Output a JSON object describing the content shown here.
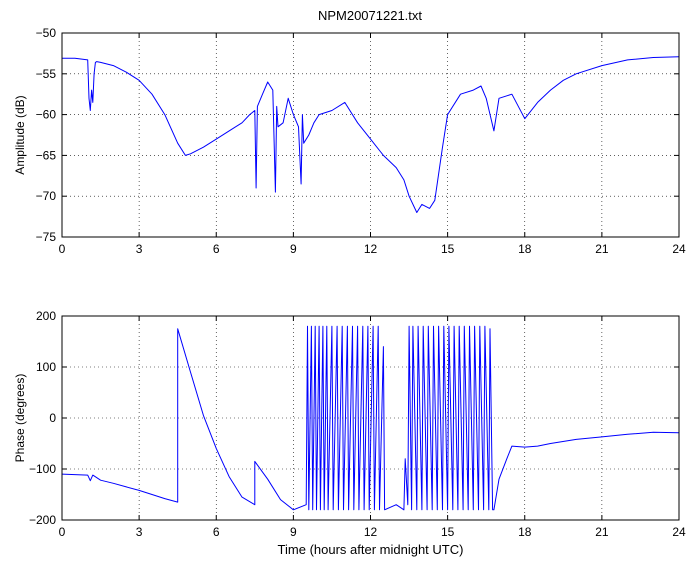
{
  "figure_title": "NPM20071221.txt",
  "chart_data": [
    {
      "type": "line",
      "title": "NPM20071221.txt",
      "xlabel": "",
      "ylabel": "Amplitude (dB)",
      "xlim": [
        0,
        24
      ],
      "ylim": [
        -75,
        -50
      ],
      "xticks": [
        0,
        3,
        6,
        9,
        12,
        15,
        18,
        21,
        24
      ],
      "yticks": [
        -75,
        -70,
        -65,
        -60,
        -55,
        -50
      ],
      "grid": true,
      "color": "#0000ff",
      "x": [
        0,
        0.5,
        1.0,
        1.05,
        1.1,
        1.15,
        1.2,
        1.25,
        1.3,
        1.35,
        1.5,
        2.0,
        2.5,
        3.0,
        3.5,
        4.0,
        4.5,
        4.8,
        5.0,
        5.5,
        6.0,
        6.5,
        7.0,
        7.3,
        7.5,
        7.55,
        7.6,
        7.8,
        8.0,
        8.2,
        8.3,
        8.35,
        8.4,
        8.6,
        8.8,
        9.0,
        9.2,
        9.3,
        9.35,
        9.4,
        9.6,
        9.8,
        10.0,
        10.5,
        11.0,
        11.5,
        12.0,
        12.5,
        13.0,
        13.3,
        13.5,
        13.8,
        14.0,
        14.3,
        14.5,
        14.8,
        15.0,
        15.5,
        16.0,
        16.3,
        16.5,
        16.8,
        17.0,
        17.5,
        18.0,
        18.5,
        19.0,
        19.5,
        20.0,
        21.0,
        22.0,
        23.0,
        24.0
      ],
      "y": [
        -53.1,
        -53.1,
        -53.3,
        -58.0,
        -59.5,
        -57.0,
        -58.5,
        -55.0,
        -53.6,
        -53.5,
        -53.6,
        -54.0,
        -54.8,
        -55.8,
        -57.5,
        -60.0,
        -63.5,
        -65.0,
        -64.8,
        -64.0,
        -63.0,
        -62.0,
        -61.0,
        -60.0,
        -59.5,
        -69.0,
        -59.0,
        -57.5,
        -56.0,
        -57.0,
        -69.5,
        -59.0,
        -61.5,
        -61.0,
        -58.0,
        -60.0,
        -61.5,
        -68.5,
        -60.0,
        -63.5,
        -62.5,
        -61.0,
        -60.0,
        -59.5,
        -58.5,
        -61.0,
        -63.0,
        -65.0,
        -66.5,
        -68.0,
        -70.0,
        -72.0,
        -71.0,
        -71.5,
        -70.5,
        -64.0,
        -60.0,
        -57.5,
        -57.0,
        -56.5,
        -58.0,
        -62.0,
        -58.0,
        -57.5,
        -60.5,
        -58.5,
        -57.0,
        -55.8,
        -55.0,
        -54.0,
        -53.3,
        -53.0,
        -52.9
      ]
    },
    {
      "type": "line",
      "title": "",
      "xlabel": "Time (hours after midnight UTC)",
      "ylabel": "Phase (degrees)",
      "xlim": [
        0,
        24
      ],
      "ylim": [
        -200,
        200
      ],
      "xticks": [
        0,
        3,
        6,
        9,
        12,
        15,
        18,
        21,
        24
      ],
      "yticks": [
        -200,
        -100,
        0,
        100,
        200
      ],
      "grid": true,
      "color": "#0000ff",
      "x": [
        0,
        1.0,
        1.1,
        1.2,
        1.5,
        2.0,
        2.5,
        3.0,
        3.5,
        4.0,
        4.5,
        4.5,
        5.0,
        5.5,
        6.0,
        6.5,
        7.0,
        7.5,
        7.5,
        8.0,
        8.5,
        9.0,
        9.5,
        9.55,
        9.6,
        9.7,
        9.75,
        9.85,
        9.9,
        10.0,
        10.05,
        10.15,
        10.2,
        10.3,
        10.35,
        10.5,
        10.55,
        10.7,
        10.75,
        10.9,
        10.95,
        11.1,
        11.15,
        11.3,
        11.35,
        11.5,
        11.55,
        11.7,
        11.75,
        11.9,
        11.95,
        12.1,
        12.15,
        12.3,
        12.35,
        12.5,
        12.55,
        13.0,
        13.3,
        13.35,
        13.45,
        13.5,
        13.6,
        13.65,
        13.8,
        13.85,
        14.0,
        14.05,
        14.2,
        14.25,
        14.4,
        14.45,
        14.6,
        14.65,
        14.8,
        14.85,
        15.0,
        15.05,
        15.2,
        15.25,
        15.4,
        15.45,
        15.6,
        15.65,
        15.8,
        15.85,
        16.0,
        16.05,
        16.2,
        16.25,
        16.4,
        16.45,
        16.6,
        16.65,
        16.75,
        16.8,
        17.0,
        17.3,
        17.5,
        18.0,
        18.5,
        19.0,
        20.0,
        21.0,
        22.0,
        23.0,
        24.0
      ],
      "y": [
        -110,
        -112,
        -123,
        -112,
        -122,
        -128,
        -135,
        -142,
        -150,
        -158,
        -165,
        175,
        90,
        5,
        -60,
        -115,
        -155,
        -170,
        -85,
        -120,
        -160,
        -180,
        -170,
        180,
        -180,
        180,
        -180,
        180,
        -180,
        180,
        -180,
        180,
        -180,
        180,
        -180,
        180,
        -180,
        180,
        -180,
        180,
        -180,
        180,
        -180,
        180,
        -180,
        180,
        -180,
        180,
        -180,
        180,
        -180,
        180,
        -180,
        180,
        -180,
        140,
        -180,
        -170,
        -180,
        -80,
        -170,
        180,
        -180,
        180,
        -180,
        180,
        -180,
        180,
        -180,
        180,
        -180,
        180,
        -180,
        180,
        -180,
        180,
        -180,
        180,
        -180,
        180,
        -180,
        180,
        -180,
        180,
        -180,
        180,
        -180,
        180,
        -180,
        180,
        -180,
        180,
        -180,
        175,
        -180,
        -180,
        -120,
        -80,
        -55,
        -57,
        -55,
        -50,
        -42,
        -37,
        -32,
        -28,
        -29
      ]
    }
  ]
}
